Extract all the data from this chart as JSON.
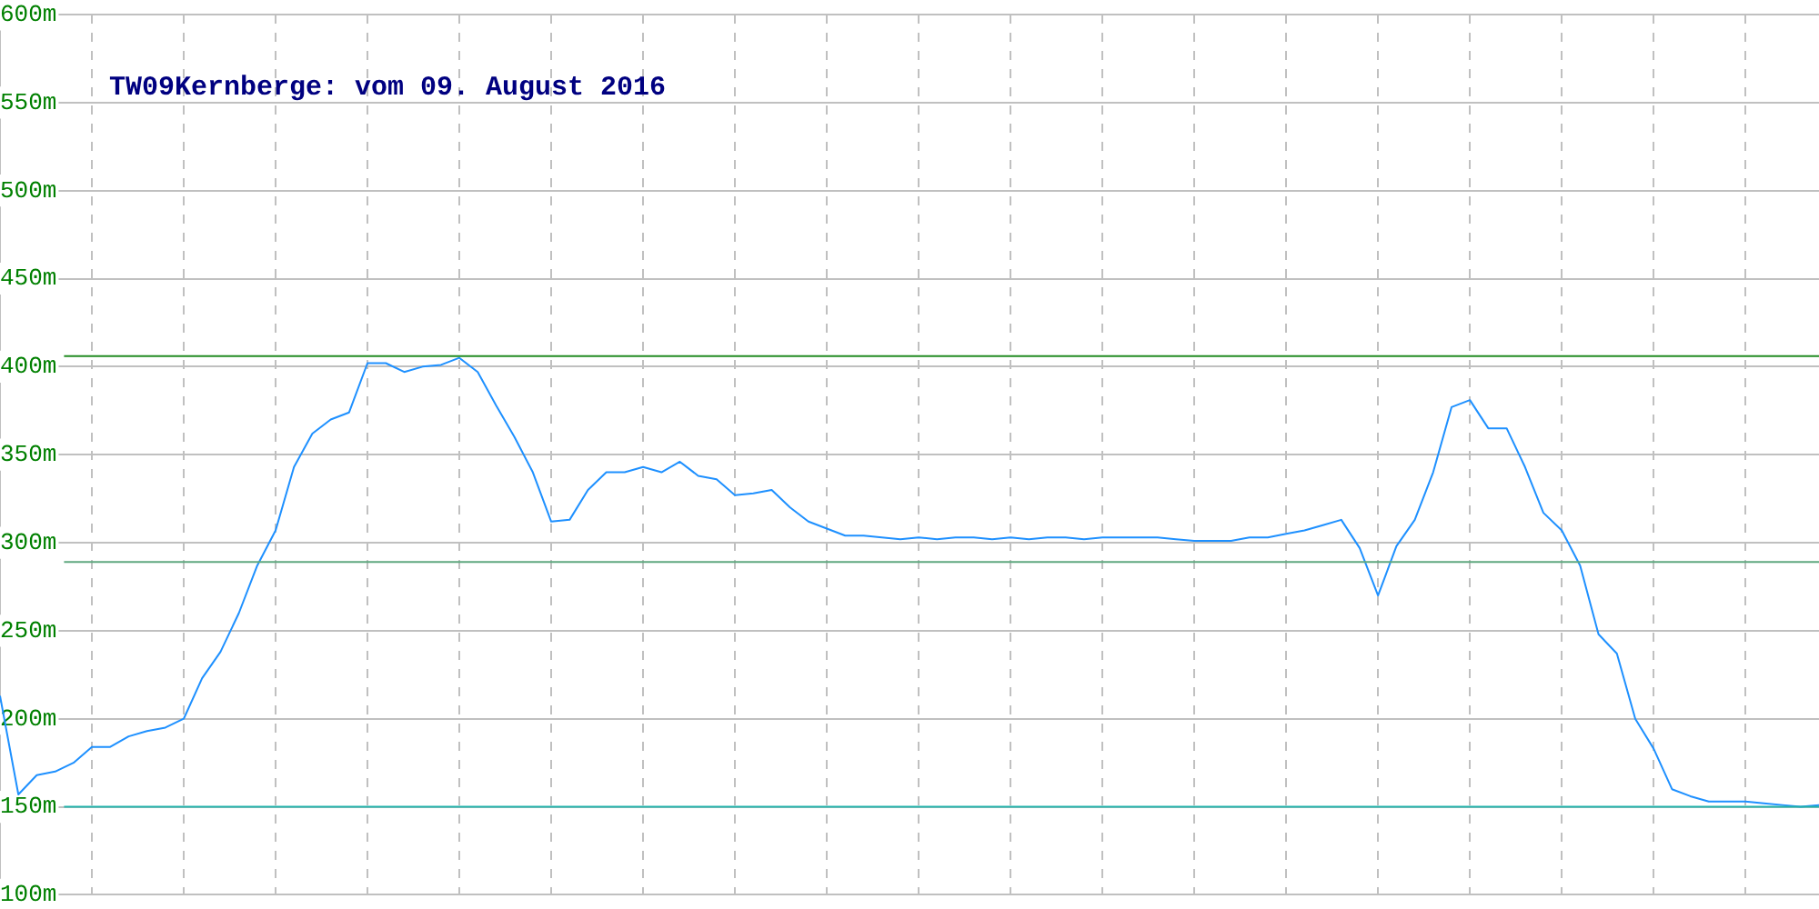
{
  "chart_data": {
    "type": "line",
    "title": "TW09Kernberge: vom 09. August 2016",
    "categories": [
      null,
      null,
      null,
      null,
      null,
      null,
      null,
      null,
      null,
      null,
      null,
      null,
      null,
      null,
      null,
      null,
      null,
      null,
      null,
      null,
      null,
      null,
      null,
      null,
      null,
      null,
      null,
      null,
      null,
      null,
      null,
      null,
      null,
      null,
      null,
      null,
      null,
      null,
      null,
      null,
      null,
      null,
      null,
      null,
      null,
      null,
      null,
      null,
      null,
      null,
      null,
      null,
      null,
      null,
      null,
      null,
      null,
      null,
      null,
      null,
      null,
      null,
      null,
      null,
      null,
      null,
      null,
      null,
      null,
      null,
      null,
      null,
      null,
      null,
      null,
      null,
      null,
      null,
      null,
      null,
      null,
      null,
      null,
      null,
      null,
      null,
      null,
      null,
      null,
      null,
      null,
      null,
      null,
      null,
      null,
      null,
      null,
      null,
      null,
      null
    ],
    "series": [
      {
        "color": "#1e90ff",
        "values": [
          213,
          157,
          168,
          170,
          175,
          184,
          184,
          190,
          193,
          195,
          200,
          223,
          238,
          260,
          287,
          307,
          343,
          362,
          370,
          374,
          402,
          402,
          397,
          400,
          401,
          405,
          397,
          378,
          360,
          340,
          312,
          313,
          330,
          340,
          340,
          343,
          340,
          346,
          338,
          336,
          327,
          328,
          330,
          320,
          312,
          308,
          304,
          304,
          303,
          302,
          303,
          302,
          303,
          303,
          302,
          303,
          302,
          303,
          303,
          302,
          303,
          303,
          303,
          303,
          302,
          301,
          301,
          301,
          303,
          303,
          305,
          307,
          310,
          313,
          297,
          270,
          298,
          313,
          340,
          377,
          381,
          365,
          365,
          343,
          317,
          307,
          287,
          248,
          237,
          200,
          183,
          160,
          156,
          153,
          153,
          153,
          152,
          151,
          150,
          151
        ]
      }
    ],
    "ylim": [
      100,
      600
    ],
    "yticks": [
      {
        "value": 100,
        "label": "100m"
      },
      {
        "value": 150,
        "label": "150m"
      },
      {
        "value": 200,
        "label": "200m"
      },
      {
        "value": 250,
        "label": "250m"
      },
      {
        "value": 300,
        "label": "300m"
      },
      {
        "value": 350,
        "label": "350m"
      },
      {
        "value": 400,
        "label": "400m"
      },
      {
        "value": 450,
        "label": "450m"
      },
      {
        "value": 500,
        "label": "500m"
      },
      {
        "value": 550,
        "label": "550m"
      },
      {
        "value": 600,
        "label": "600m"
      }
    ],
    "tick_labels": "y",
    "grid": true,
    "legend": false,
    "marker": "none",
    "line_style": "solid",
    "ref_lines": [
      {
        "axis": "y",
        "value": 406,
        "color": "#228b22"
      },
      {
        "axis": "y",
        "value": 289,
        "color": "#5fa87f"
      },
      {
        "axis": "y",
        "value": 150,
        "color": "#20b2aa"
      }
    ]
  }
}
